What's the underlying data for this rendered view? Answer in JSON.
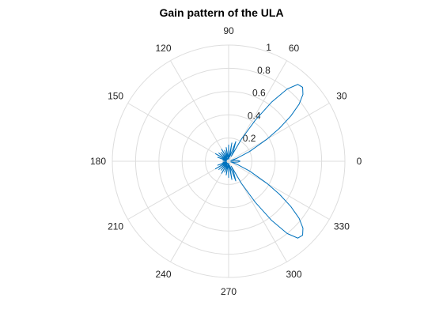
{
  "chart_data": {
    "type": "line",
    "subtype": "polar",
    "title": "Gain pattern of the ULA",
    "theta_unit": "degrees",
    "theta_ticks": [
      0,
      30,
      60,
      90,
      120,
      150,
      180,
      210,
      240,
      270,
      300,
      330
    ],
    "theta_tick_labels": [
      "0",
      "30",
      "60",
      "90",
      "120",
      "150",
      "180",
      "210",
      "240",
      "270",
      "300",
      "330"
    ],
    "r_ticks": [
      0.2,
      0.4,
      0.6,
      0.8,
      1
    ],
    "r_tick_labels": [
      "0.2",
      "0.4",
      "0.6",
      "0.8",
      "1"
    ],
    "rlim": [
      0,
      1
    ],
    "grid": true,
    "line_color": "#0072BD",
    "grid_color": "#dddddd",
    "series": [
      {
        "theta": [
          0,
          5,
          10,
          15,
          20,
          25,
          30,
          33,
          36,
          39,
          42,
          45,
          48,
          51,
          54,
          57,
          60,
          62,
          65,
          70,
          75,
          80,
          85,
          90,
          95,
          100,
          105,
          110,
          115,
          120,
          125,
          130,
          135,
          140,
          145,
          150,
          155,
          160,
          165,
          170,
          175,
          180,
          185,
          190,
          195,
          200,
          205,
          210,
          215,
          220,
          225,
          230,
          235,
          240,
          245,
          250,
          255,
          260,
          265,
          270,
          275,
          280,
          285,
          290,
          295,
          298,
          300,
          303,
          306,
          309,
          312,
          315,
          318,
          321,
          324,
          327,
          330,
          335,
          340,
          345,
          350,
          355,
          360
        ],
        "r": [
          0.1,
          0.08,
          0.05,
          0.02,
          0.08,
          0.2,
          0.38,
          0.52,
          0.66,
          0.78,
          0.86,
          0.9,
          0.89,
          0.8,
          0.63,
          0.42,
          0.22,
          0.05,
          0.1,
          0.18,
          0.04,
          0.16,
          0.02,
          0.14,
          0.02,
          0.12,
          0.04,
          0.1,
          0.02,
          0.12,
          0.02,
          0.1,
          0.02,
          0.11,
          0.02,
          0.13,
          0.02,
          0.1,
          0.02,
          0.05,
          0.02,
          0.02,
          0.02,
          0.05,
          0.02,
          0.1,
          0.02,
          0.13,
          0.02,
          0.11,
          0.02,
          0.1,
          0.02,
          0.12,
          0.02,
          0.1,
          0.04,
          0.12,
          0.02,
          0.14,
          0.02,
          0.16,
          0.04,
          0.18,
          0.1,
          0.05,
          0.22,
          0.42,
          0.63,
          0.8,
          0.89,
          0.9,
          0.86,
          0.78,
          0.66,
          0.52,
          0.38,
          0.2,
          0.08,
          0.02,
          0.05,
          0.08,
          0.1
        ]
      }
    ]
  }
}
